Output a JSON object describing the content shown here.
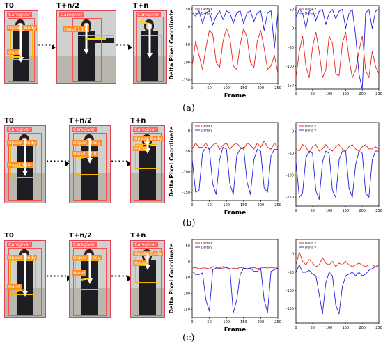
{
  "rows": [
    {
      "caption": "(a)",
      "frames": [
        {
          "time": "T0",
          "tags": [
            "Caregiver",
            "Upper_Body",
            "Hand",
            "Hand"
          ]
        },
        {
          "time": "T+n/2",
          "tags": [
            "Caregiver",
            "Hand 1.00",
            "Upper_Body",
            "Hand"
          ]
        },
        {
          "time": "T+n",
          "tags": [
            "Caregiver",
            "Upper_Body",
            "Hand",
            "Hand"
          ]
        }
      ]
    },
    {
      "caption": "(b)",
      "frames": [
        {
          "time": "T0",
          "tags": [
            "Caregiver",
            "Upper_Body",
            "Hand 1.00"
          ]
        },
        {
          "time": "T+n/2",
          "tags": [
            "Caregiver",
            "Upper_Body",
            "Hand 1.00"
          ]
        },
        {
          "time": "T+n",
          "tags": [
            "Caregiver",
            "Upper_Body",
            "Hand"
          ]
        }
      ]
    },
    {
      "caption": "(c)",
      "frames": [
        {
          "time": "T0",
          "tags": [
            "Caregiver",
            "Upper_Body",
            "Hand"
          ]
        },
        {
          "time": "T+n/2",
          "tags": [
            "Caregiver",
            "Upper_Body",
            "Hand"
          ]
        },
        {
          "time": "T+n",
          "tags": [
            "Caregiver",
            "Upper_Body",
            "Hand"
          ]
        }
      ]
    }
  ],
  "colors": {
    "delta_x": "#e8231b",
    "delta_y": "#2020e0",
    "bbox_red": "#ff4d4d",
    "bbox_yellow": "#f2b400"
  },
  "chart_data": [
    {
      "type": "line",
      "xlabel": "Frame",
      "ylabel": "Delta Pixel Coordinate",
      "xlim": [
        0,
        250
      ],
      "ylim": [
        -160,
        60
      ],
      "xticks": [
        0,
        50,
        100,
        150,
        200,
        250
      ],
      "yticks": [
        50,
        0,
        -50,
        -100,
        -150
      ],
      "legend": "top-left",
      "series": [
        {
          "name": "Delta x",
          "x": [
            0,
            10,
            20,
            30,
            40,
            50,
            60,
            70,
            80,
            90,
            100,
            110,
            120,
            130,
            140,
            150,
            160,
            170,
            180,
            190,
            200,
            210,
            220,
            230,
            240,
            250
          ],
          "values": [
            -110,
            -40,
            -80,
            -120,
            -60,
            -10,
            -20,
            -100,
            -115,
            -40,
            -5,
            -30,
            -110,
            -120,
            -50,
            -5,
            -30,
            -100,
            -115,
            -40,
            -10,
            -60,
            -120,
            -110,
            -80,
            -130
          ]
        },
        {
          "name": "Delta y",
          "x": [
            0,
            10,
            20,
            30,
            40,
            50,
            60,
            70,
            80,
            90,
            100,
            110,
            120,
            130,
            140,
            150,
            160,
            170,
            180,
            190,
            200,
            210,
            220,
            230,
            240,
            250
          ],
          "values": [
            40,
            30,
            45,
            10,
            40,
            45,
            5,
            30,
            45,
            20,
            45,
            40,
            10,
            40,
            45,
            10,
            40,
            45,
            15,
            40,
            45,
            -10,
            40,
            45,
            -60,
            40
          ]
        }
      ]
    },
    {
      "type": "line",
      "xlabel": "",
      "ylabel": "",
      "xlim": [
        0,
        250
      ],
      "ylim": [
        -160,
        60
      ],
      "xticks": [
        0,
        50,
        100,
        150,
        200,
        250
      ],
      "yticks": [
        50,
        0,
        -50,
        -100,
        -150
      ],
      "legend": "top-left",
      "series": [
        {
          "name": "Delta x",
          "x": [
            0,
            10,
            20,
            30,
            40,
            50,
            60,
            70,
            80,
            90,
            100,
            110,
            120,
            130,
            140,
            150,
            160,
            170,
            180,
            190,
            200,
            210,
            220,
            230,
            240,
            250
          ],
          "values": [
            -130,
            -60,
            -20,
            -100,
            -130,
            -50,
            -10,
            -60,
            -130,
            -110,
            -20,
            -40,
            -120,
            -125,
            -40,
            -10,
            -80,
            -130,
            -110,
            -60,
            -20,
            -110,
            -130,
            -60,
            -100,
            -120
          ]
        },
        {
          "name": "Delta y",
          "x": [
            0,
            10,
            20,
            30,
            40,
            50,
            60,
            70,
            80,
            90,
            100,
            110,
            120,
            130,
            140,
            150,
            160,
            170,
            180,
            190,
            200,
            210,
            220,
            230,
            240,
            250
          ],
          "values": [
            30,
            50,
            40,
            0,
            45,
            50,
            20,
            45,
            50,
            10,
            40,
            50,
            25,
            45,
            50,
            0,
            40,
            50,
            -20,
            -120,
            -160,
            40,
            50,
            0,
            45,
            50
          ]
        }
      ]
    },
    {
      "type": "line",
      "xlabel": "Frame",
      "ylabel": "Delta Pixel Coordinate",
      "xlim": [
        0,
        250
      ],
      "ylim": [
        -170,
        20
      ],
      "xticks": [
        0,
        50,
        100,
        150,
        200,
        250
      ],
      "yticks": [
        0,
        -50,
        -100,
        -150
      ],
      "legend": "top-left",
      "series": [
        {
          "name": "Delta x",
          "x": [
            0,
            10,
            20,
            30,
            40,
            50,
            60,
            70,
            80,
            90,
            100,
            110,
            120,
            130,
            140,
            150,
            160,
            170,
            180,
            190,
            200,
            210,
            220,
            230,
            240,
            250
          ],
          "values": [
            -45,
            -30,
            -40,
            -40,
            -30,
            -45,
            -35,
            -30,
            -45,
            -35,
            -30,
            -45,
            -35,
            -30,
            -40,
            -45,
            -30,
            -35,
            -45,
            -30,
            -40,
            -25,
            -40,
            -45,
            -30,
            -40
          ]
        },
        {
          "name": "Delta y",
          "x": [
            0,
            10,
            20,
            30,
            40,
            50,
            60,
            70,
            80,
            90,
            100,
            110,
            120,
            130,
            140,
            150,
            160,
            170,
            180,
            190,
            200,
            210,
            220,
            230,
            240,
            250
          ],
          "values": [
            -70,
            -150,
            -145,
            -55,
            -40,
            -45,
            -130,
            -155,
            -70,
            -40,
            -45,
            -130,
            -155,
            -60,
            -45,
            -40,
            -125,
            -155,
            -70,
            -45,
            -50,
            -140,
            -150,
            -60,
            -45,
            -45
          ]
        }
      ]
    },
    {
      "type": "line",
      "xlabel": "",
      "ylabel": "",
      "xlim": [
        0,
        250
      ],
      "ylim": [
        -170,
        20
      ],
      "xticks": [
        0,
        50,
        100,
        150,
        200,
        250
      ],
      "yticks": [
        0,
        -50,
        -100,
        -150
      ],
      "legend": "top-left",
      "series": [
        {
          "name": "Delta x",
          "x": [
            0,
            10,
            20,
            30,
            40,
            50,
            60,
            70,
            80,
            90,
            100,
            110,
            120,
            130,
            140,
            150,
            160,
            170,
            180,
            190,
            200,
            210,
            220,
            230,
            240,
            250
          ],
          "values": [
            -40,
            -45,
            -30,
            -35,
            -50,
            -35,
            -30,
            -45,
            -40,
            -30,
            -40,
            -45,
            -35,
            -30,
            -40,
            -45,
            -35,
            -30,
            -40,
            -45,
            -35,
            -30,
            -40,
            -40,
            -35,
            -40
          ]
        },
        {
          "name": "Delta y",
          "x": [
            0,
            10,
            20,
            30,
            40,
            50,
            60,
            70,
            80,
            90,
            100,
            110,
            120,
            130,
            140,
            150,
            160,
            170,
            180,
            190,
            200,
            210,
            220,
            230,
            240,
            250
          ],
          "values": [
            -70,
            -150,
            -140,
            -60,
            -45,
            -50,
            -135,
            -155,
            -70,
            -45,
            -50,
            -135,
            -150,
            -65,
            -45,
            -45,
            -130,
            -150,
            -75,
            -45,
            -50,
            -140,
            -150,
            -65,
            -45,
            -45
          ]
        }
      ]
    },
    {
      "type": "line",
      "xlabel": "Frame",
      "ylabel": "Delta Pixel Coordinate",
      "xlim": [
        0,
        250
      ],
      "ylim": [
        -175,
        70
      ],
      "xticks": [
        0,
        50,
        100,
        150,
        200,
        250
      ],
      "yticks": [
        50,
        0,
        -50,
        -100,
        -150
      ],
      "legend": "top-left",
      "series": [
        {
          "name": "Delta x",
          "x": [
            0,
            10,
            20,
            30,
            40,
            50,
            60,
            70,
            80,
            90,
            100,
            110,
            120,
            130,
            140,
            150,
            160,
            170,
            180,
            190,
            200,
            210,
            220,
            230,
            240,
            250
          ],
          "values": [
            -20,
            -18,
            -22,
            -20,
            -20,
            -22,
            -15,
            -18,
            -22,
            -20,
            -18,
            -24,
            -20,
            -22,
            -18,
            -20,
            -24,
            -20,
            -18,
            -22,
            -20,
            -18,
            -20,
            -18,
            -20,
            -20
          ]
        },
        {
          "name": "Delta y",
          "x": [
            0,
            10,
            20,
            30,
            40,
            50,
            60,
            70,
            80,
            90,
            100,
            110,
            120,
            130,
            140,
            150,
            160,
            170,
            180,
            190,
            200,
            210,
            220,
            230,
            240,
            250
          ],
          "values": [
            -30,
            -40,
            -40,
            -35,
            -120,
            -155,
            -25,
            -20,
            -20,
            -15,
            -18,
            -22,
            -160,
            -120,
            -40,
            -20,
            -22,
            -20,
            -30,
            -30,
            -20,
            -120,
            -160,
            -30,
            -25,
            -20
          ]
        }
      ]
    },
    {
      "type": "line",
      "xlabel": "",
      "ylabel": "",
      "xlim": [
        0,
        250
      ],
      "ylim": [
        -190,
        40
      ],
      "xticks": [
        0,
        50,
        100,
        150,
        200,
        250
      ],
      "yticks": [
        0,
        -50,
        -100,
        -150
      ],
      "legend": "top-left",
      "series": [
        {
          "name": "Delta x",
          "x": [
            0,
            10,
            20,
            30,
            40,
            50,
            60,
            70,
            80,
            90,
            100,
            110,
            120,
            130,
            140,
            150,
            160,
            170,
            180,
            190,
            200,
            210,
            220,
            230,
            240,
            250
          ],
          "values": [
            -30,
            5,
            -20,
            -30,
            -15,
            -25,
            -35,
            -30,
            -10,
            -25,
            -30,
            -20,
            -35,
            -25,
            -30,
            -20,
            -30,
            -35,
            -30,
            -25,
            -30,
            -35,
            -30,
            -30,
            -35,
            -30
          ]
        },
        {
          "name": "Delta y",
          "x": [
            0,
            10,
            20,
            30,
            40,
            50,
            60,
            70,
            80,
            90,
            100,
            110,
            120,
            130,
            140,
            150,
            160,
            170,
            180,
            190,
            200,
            210,
            220,
            230,
            240,
            250
          ],
          "values": [
            -50,
            -30,
            -50,
            -50,
            -45,
            -55,
            -60,
            -110,
            -165,
            -80,
            -50,
            -60,
            -140,
            -165,
            -90,
            -60,
            -55,
            -50,
            -60,
            -50,
            -60,
            -55,
            -45,
            -40,
            -35,
            -35
          ]
        }
      ]
    }
  ]
}
